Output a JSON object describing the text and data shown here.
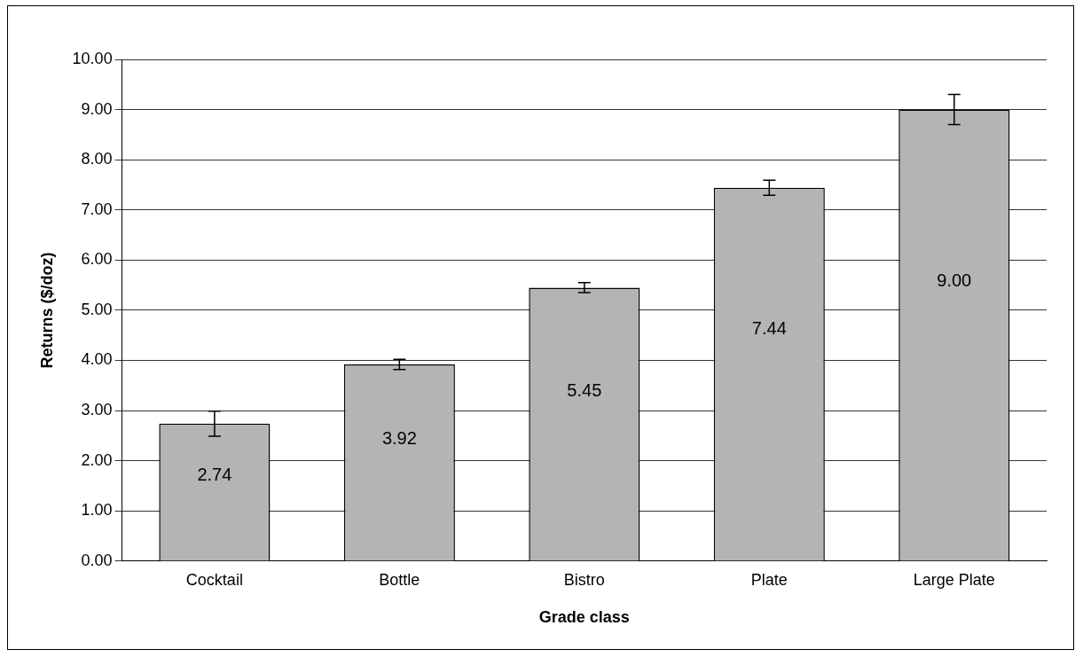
{
  "chart_data": {
    "type": "bar",
    "xlabel": "Grade class",
    "ylabel": "Returns ($/doz)",
    "categories": [
      "Cocktail",
      "Bottle",
      "Bistro",
      "Plate",
      "Large Plate"
    ],
    "values": [
      2.74,
      3.92,
      5.45,
      7.44,
      9.0
    ],
    "value_labels": [
      "2.74",
      "3.92",
      "5.45",
      "7.44",
      "9.00"
    ],
    "errors": [
      0.25,
      0.1,
      0.1,
      0.15,
      0.3
    ],
    "color": "#b4b4b4",
    "ylim": [
      0,
      10
    ],
    "yticks": [
      {
        "value": 0,
        "label": "0.00"
      },
      {
        "value": 1,
        "label": "1.00"
      },
      {
        "value": 2,
        "label": "2.00"
      },
      {
        "value": 3,
        "label": "3.00"
      },
      {
        "value": 4,
        "label": "4.00"
      },
      {
        "value": 5,
        "label": "5.00"
      },
      {
        "value": 6,
        "label": "6.00"
      },
      {
        "value": 7,
        "label": "7.00"
      },
      {
        "value": 8,
        "label": "8.00"
      },
      {
        "value": 9,
        "label": "9.00"
      },
      {
        "value": 10,
        "label": "10.00"
      }
    ],
    "grid": "y",
    "legend": false
  }
}
